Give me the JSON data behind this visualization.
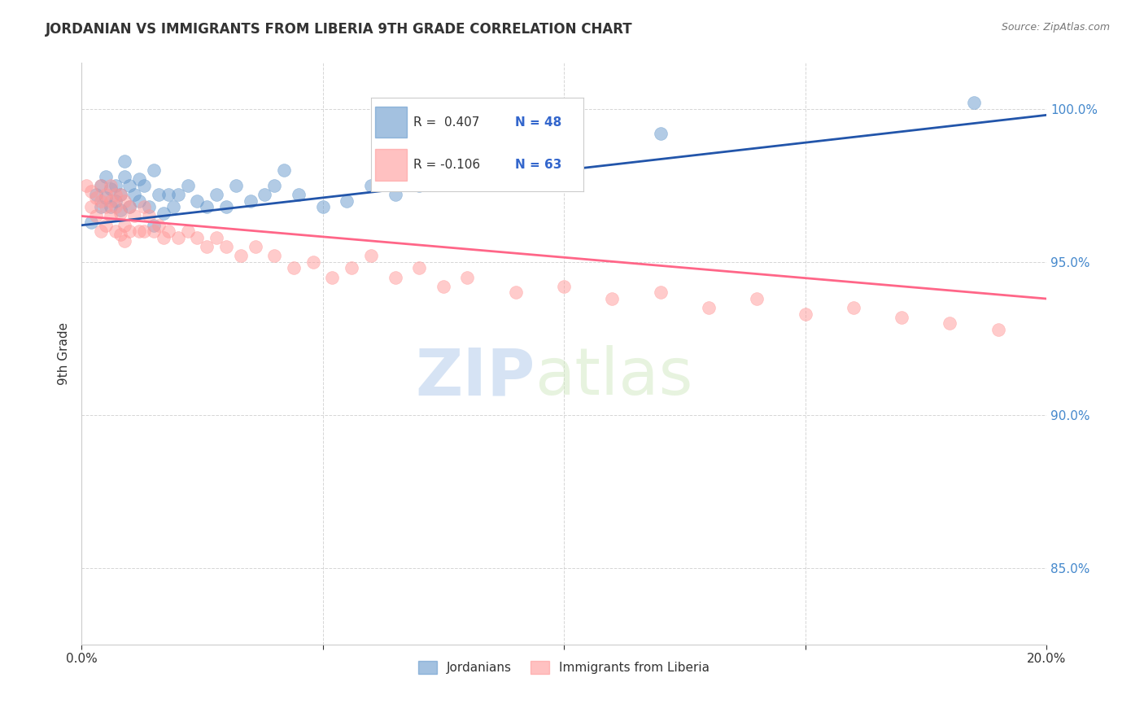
{
  "title": "JORDANIAN VS IMMIGRANTS FROM LIBERIA 9TH GRADE CORRELATION CHART",
  "source": "Source: ZipAtlas.com",
  "ylabel": "9th Grade",
  "ytick_labels": [
    "100.0%",
    "95.0%",
    "90.0%",
    "85.0%"
  ],
  "ytick_values": [
    1.0,
    0.95,
    0.9,
    0.85
  ],
  "xmin": 0.0,
  "xmax": 0.2,
  "ymin": 0.825,
  "ymax": 1.015,
  "legend_blue_r": "R =  0.407",
  "legend_blue_n": "N = 48",
  "legend_pink_r": "R = -0.106",
  "legend_pink_n": "N = 63",
  "blue_color": "#6699CC",
  "pink_color": "#FF9999",
  "trendline_blue": "#2255AA",
  "trendline_pink": "#FF6688",
  "watermark_zip": "ZIP",
  "watermark_atlas": "atlas",
  "blue_scatter": [
    [
      0.002,
      0.963
    ],
    [
      0.003,
      0.972
    ],
    [
      0.004,
      0.968
    ],
    [
      0.004,
      0.975
    ],
    [
      0.005,
      0.971
    ],
    [
      0.005,
      0.978
    ],
    [
      0.006,
      0.974
    ],
    [
      0.006,
      0.968
    ],
    [
      0.007,
      0.97
    ],
    [
      0.007,
      0.975
    ],
    [
      0.008,
      0.967
    ],
    [
      0.008,
      0.972
    ],
    [
      0.009,
      0.978
    ],
    [
      0.009,
      0.983
    ],
    [
      0.01,
      0.975
    ],
    [
      0.01,
      0.968
    ],
    [
      0.011,
      0.972
    ],
    [
      0.012,
      0.97
    ],
    [
      0.012,
      0.977
    ],
    [
      0.013,
      0.975
    ],
    [
      0.014,
      0.968
    ],
    [
      0.015,
      0.98
    ],
    [
      0.015,
      0.962
    ],
    [
      0.016,
      0.972
    ],
    [
      0.017,
      0.966
    ],
    [
      0.018,
      0.972
    ],
    [
      0.019,
      0.968
    ],
    [
      0.02,
      0.972
    ],
    [
      0.022,
      0.975
    ],
    [
      0.024,
      0.97
    ],
    [
      0.026,
      0.968
    ],
    [
      0.028,
      0.972
    ],
    [
      0.03,
      0.968
    ],
    [
      0.032,
      0.975
    ],
    [
      0.035,
      0.97
    ],
    [
      0.038,
      0.972
    ],
    [
      0.04,
      0.975
    ],
    [
      0.042,
      0.98
    ],
    [
      0.045,
      0.972
    ],
    [
      0.05,
      0.968
    ],
    [
      0.055,
      0.97
    ],
    [
      0.06,
      0.975
    ],
    [
      0.065,
      0.972
    ],
    [
      0.07,
      0.975
    ],
    [
      0.08,
      0.988
    ],
    [
      0.09,
      0.985
    ],
    [
      0.12,
      0.992
    ],
    [
      0.185,
      1.002
    ]
  ],
  "pink_scatter": [
    [
      0.001,
      0.975
    ],
    [
      0.002,
      0.973
    ],
    [
      0.002,
      0.968
    ],
    [
      0.003,
      0.971
    ],
    [
      0.003,
      0.965
    ],
    [
      0.004,
      0.97
    ],
    [
      0.004,
      0.96
    ],
    [
      0.004,
      0.975
    ],
    [
      0.005,
      0.972
    ],
    [
      0.005,
      0.968
    ],
    [
      0.005,
      0.962
    ],
    [
      0.006,
      0.975
    ],
    [
      0.006,
      0.97
    ],
    [
      0.006,
      0.965
    ],
    [
      0.007,
      0.972
    ],
    [
      0.007,
      0.968
    ],
    [
      0.007,
      0.96
    ],
    [
      0.008,
      0.972
    ],
    [
      0.008,
      0.966
    ],
    [
      0.008,
      0.959
    ],
    [
      0.009,
      0.97
    ],
    [
      0.009,
      0.962
    ],
    [
      0.009,
      0.957
    ],
    [
      0.01,
      0.968
    ],
    [
      0.01,
      0.96
    ],
    [
      0.011,
      0.965
    ],
    [
      0.012,
      0.96
    ],
    [
      0.013,
      0.968
    ],
    [
      0.013,
      0.96
    ],
    [
      0.014,
      0.965
    ],
    [
      0.015,
      0.96
    ],
    [
      0.016,
      0.962
    ],
    [
      0.017,
      0.958
    ],
    [
      0.018,
      0.96
    ],
    [
      0.02,
      0.958
    ],
    [
      0.022,
      0.96
    ],
    [
      0.024,
      0.958
    ],
    [
      0.026,
      0.955
    ],
    [
      0.028,
      0.958
    ],
    [
      0.03,
      0.955
    ],
    [
      0.033,
      0.952
    ],
    [
      0.036,
      0.955
    ],
    [
      0.04,
      0.952
    ],
    [
      0.044,
      0.948
    ],
    [
      0.048,
      0.95
    ],
    [
      0.052,
      0.945
    ],
    [
      0.056,
      0.948
    ],
    [
      0.06,
      0.952
    ],
    [
      0.065,
      0.945
    ],
    [
      0.07,
      0.948
    ],
    [
      0.075,
      0.942
    ],
    [
      0.08,
      0.945
    ],
    [
      0.09,
      0.94
    ],
    [
      0.1,
      0.942
    ],
    [
      0.11,
      0.938
    ],
    [
      0.12,
      0.94
    ],
    [
      0.13,
      0.935
    ],
    [
      0.14,
      0.938
    ],
    [
      0.15,
      0.933
    ],
    [
      0.16,
      0.935
    ],
    [
      0.17,
      0.932
    ],
    [
      0.18,
      0.93
    ],
    [
      0.19,
      0.928
    ]
  ],
  "blue_trendline_x": [
    0.0,
    0.2
  ],
  "blue_trendline_y": [
    0.962,
    0.998
  ],
  "pink_trendline_x": [
    0.0,
    0.2
  ],
  "pink_trendline_y": [
    0.965,
    0.938
  ]
}
